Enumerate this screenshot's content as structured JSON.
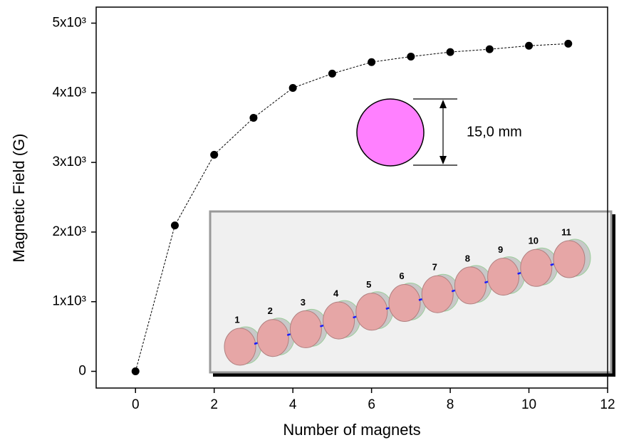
{
  "chart_data": {
    "type": "line",
    "x_label": "Number of magnets",
    "y_label": "Magnetic Field (G)",
    "x": [
      0,
      1,
      2,
      3,
      4,
      5,
      6,
      7,
      8,
      9,
      10,
      11
    ],
    "series": [
      {
        "name": null,
        "color": "#000000",
        "values": [
          0,
          2095,
          3110,
          3640,
          4070,
          4275,
          4440,
          4520,
          4585,
          4625,
          4675,
          4705
        ]
      }
    ],
    "xlim": [
      -1,
      12
    ],
    "xticks": [
      0,
      2,
      4,
      6,
      8,
      10,
      12
    ],
    "ylim": [
      -240,
      5230
    ],
    "yticks": [
      0,
      {
        "value": 1000,
        "label": "1x10³"
      },
      {
        "value": 2000,
        "label": "2x10³"
      },
      {
        "value": 3000,
        "label": "3x10³"
      },
      {
        "value": 4000,
        "label": "4x10³"
      },
      {
        "value": 5000,
        "label": "5x10³"
      }
    ],
    "annotation": "15,0 mm",
    "inset_labels": [
      "1",
      "2",
      "3",
      "4",
      "5",
      "6",
      "7",
      "8",
      "9",
      "10",
      "11"
    ]
  }
}
